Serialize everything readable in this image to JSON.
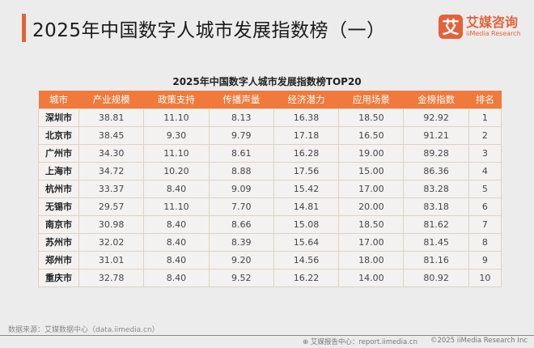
{
  "title": "2025年中国数字人城市发展指数榜（一）",
  "logo": {
    "mark": "艾",
    "cn": "艾媒咨询",
    "en": "iiMedia Research"
  },
  "subtitle": "2025年中国数字人城市发展指数榜TOP20",
  "table": {
    "headers": [
      "城市",
      "产业规模",
      "政策支持",
      "传播声量",
      "经济潜力",
      "应用场景",
      "金榜指数",
      "排名"
    ],
    "rows": [
      [
        "深圳市",
        "38.81",
        "11.10",
        "8.13",
        "16.38",
        "18.50",
        "92.92",
        "1"
      ],
      [
        "北京市",
        "38.45",
        "9.30",
        "9.79",
        "17.18",
        "16.50",
        "91.21",
        "2"
      ],
      [
        "广州市",
        "34.30",
        "11.10",
        "8.61",
        "16.28",
        "19.00",
        "89.28",
        "3"
      ],
      [
        "上海市",
        "34.72",
        "10.20",
        "8.88",
        "17.56",
        "15.00",
        "86.36",
        "4"
      ],
      [
        "杭州市",
        "33.37",
        "8.40",
        "9.09",
        "15.42",
        "17.00",
        "83.28",
        "5"
      ],
      [
        "无锡市",
        "29.57",
        "11.10",
        "7.70",
        "14.81",
        "20.00",
        "83.18",
        "6"
      ],
      [
        "南京市",
        "30.98",
        "8.40",
        "8.66",
        "15.08",
        "18.50",
        "81.62",
        "7"
      ],
      [
        "苏州市",
        "32.02",
        "8.40",
        "8.39",
        "15.64",
        "17.00",
        "81.45",
        "8"
      ],
      [
        "郑州市",
        "31.01",
        "8.40",
        "9.20",
        "14.56",
        "18.00",
        "81.16",
        "9"
      ],
      [
        "重庆市",
        "32.78",
        "8.40",
        "9.52",
        "16.22",
        "14.00",
        "80.92",
        "10"
      ]
    ]
  },
  "source": "数据来源：艾媒数据中心（data.iimedia.cn）",
  "footer": {
    "report": "艾媒报告中心：report.iimedia.cn",
    "copyright": "©2025  iiMedia Research  Inc"
  },
  "colors": {
    "accent": "#e2623a",
    "header": "#ef7a3c"
  }
}
